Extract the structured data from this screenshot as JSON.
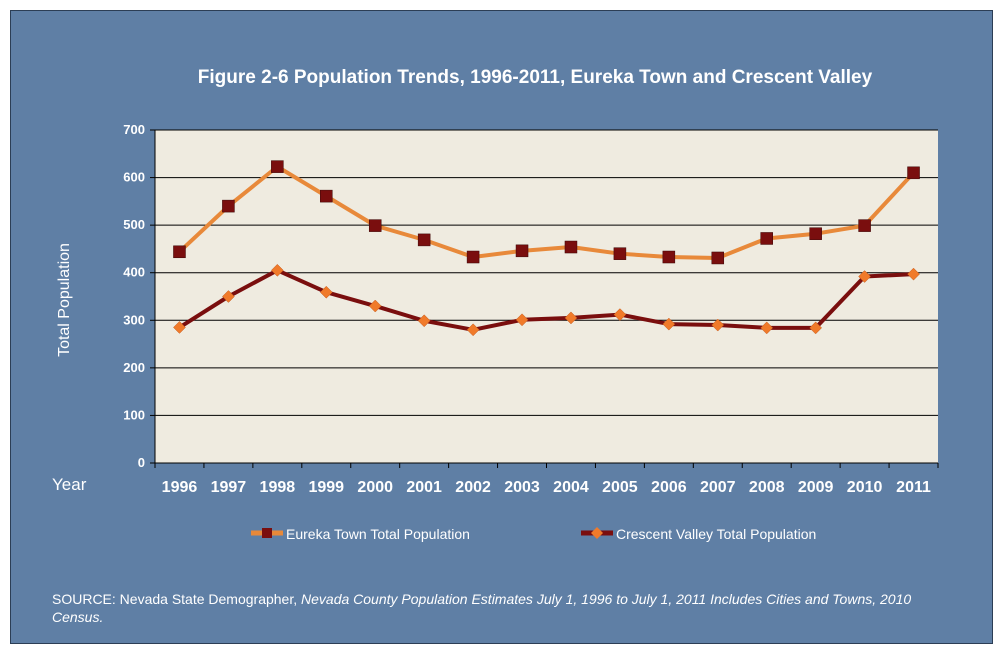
{
  "chart_data": {
    "type": "line",
    "title": "Figure 2-6 Population Trends, 1996-2011, Eureka Town and Crescent Valley",
    "xlabel": "Year",
    "ylabel": "Total Population",
    "ylim": [
      0,
      700
    ],
    "yticks": [
      "0",
      "100",
      "200",
      "300",
      "400",
      "500",
      "600",
      "700"
    ],
    "categories": [
      "1996",
      "1997",
      "1998",
      "1999",
      "2000",
      "2001",
      "2002",
      "2003",
      "2004",
      "2005",
      "2006",
      "2007",
      "2008",
      "2009",
      "2010",
      "2011"
    ],
    "grid": true,
    "legend": "bottom",
    "series": [
      {
        "name": "Eureka Town Total Population",
        "line_color": "#e8893a",
        "marker_color": "#7a0e0e",
        "marker": "square",
        "values": [
          444,
          540,
          623,
          561,
          499,
          469,
          433,
          446,
          454,
          440,
          433,
          431,
          472,
          482,
          499,
          610
        ]
      },
      {
        "name": "Crescent Valley Total Population",
        "line_color": "#7a0e0e",
        "marker_color": "#f07a2a",
        "marker": "diamond",
        "values": [
          285,
          350,
          405,
          359,
          330,
          299,
          280,
          301,
          305,
          312,
          292,
          290,
          284,
          284,
          392,
          397
        ]
      }
    ],
    "plot_background": "#efebe0"
  },
  "source": {
    "prefix": "SOURCE: Nevada State Demographer, ",
    "italic": "Nevada County Population Estimates July 1, 1996 to July 1, 2011 Includes Cities and Towns, 2010 Census."
  }
}
